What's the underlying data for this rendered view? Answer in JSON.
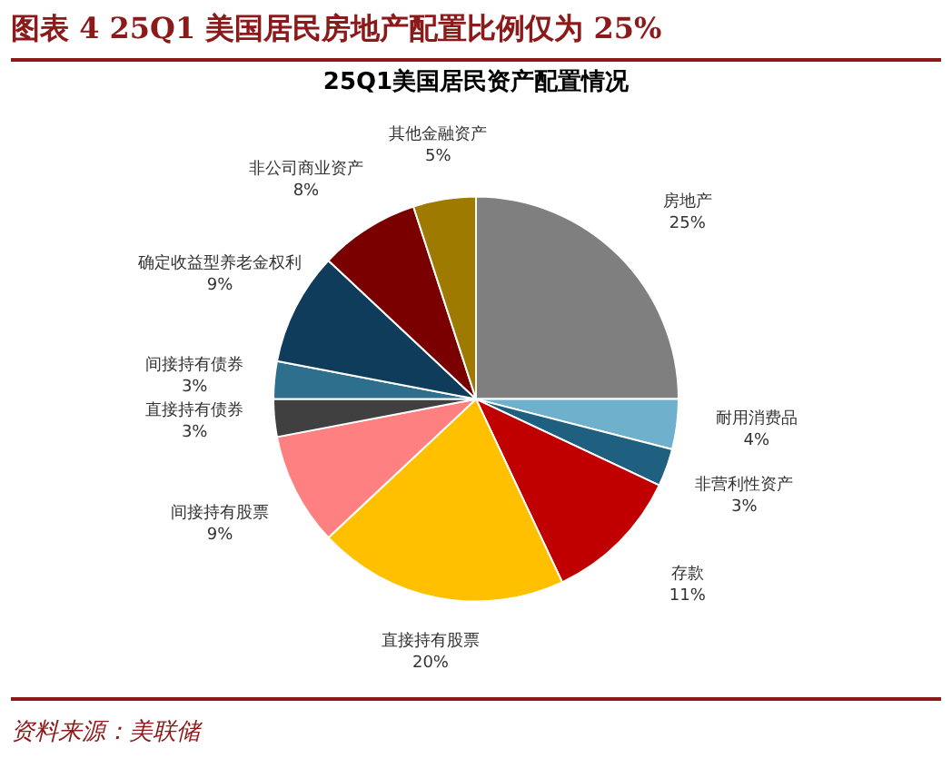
{
  "chart_data": {
    "type": "pie",
    "title": "图表 4   25Q1 美国居民房地产配置比例仅为 25%",
    "subtitle": "25Q1美国居民资产配置情况",
    "categories": [
      "房地产",
      "耐用消费品",
      "非营利性资产",
      "存款",
      "直接持有股票",
      "间接持有股票",
      "直接持有债券",
      "间接持有债券",
      "确定收益型养老金权利",
      "非公司商业资产",
      "其他金融资产"
    ],
    "values": [
      25,
      4,
      3,
      11,
      20,
      9,
      3,
      3,
      9,
      8,
      5
    ],
    "value_labels": [
      "25%",
      "4%",
      "3%",
      "11%",
      "20%",
      "9%",
      "3%",
      "3%",
      "9%",
      "8%",
      "5%"
    ],
    "colors": [
      "#7f7f7f",
      "#6fb0cc",
      "#1f5f7f",
      "#c00000",
      "#ffc000",
      "#ff8080",
      "#404040",
      "#2e6f8e",
      "#0f3c5a",
      "#7a0000",
      "#9e7b00"
    ],
    "legend": false,
    "annotations": [
      "资料来源：美联储"
    ]
  }
}
